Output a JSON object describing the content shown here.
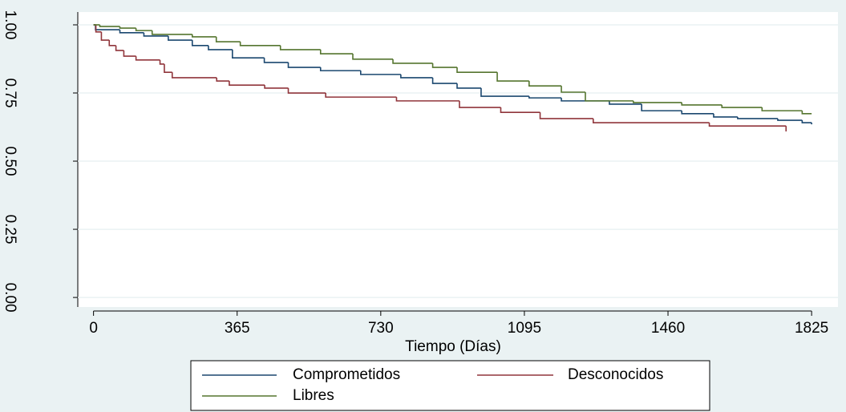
{
  "chart_data": {
    "type": "step",
    "step": "post",
    "x_label": "Tiempo (Días)",
    "xlim": [
      -40,
      1892
    ],
    "ylim": [
      -0.035,
      1.047
    ],
    "xticks": [
      0,
      365,
      730,
      1095,
      1460,
      1825
    ],
    "yticks": [
      {
        "value": 0,
        "label": "0.00"
      },
      {
        "value": 0.25,
        "label": "0.25"
      },
      {
        "value": 0.5,
        "label": "0.50"
      },
      {
        "value": 0.75,
        "label": "0.75"
      },
      {
        "value": 1,
        "label": "1.00"
      }
    ],
    "grid": true,
    "legend": "bottom",
    "series": [
      {
        "name": "Comprometidos",
        "color": "#1a476f",
        "x": [
          0,
          5,
          67,
          128,
          190,
          251,
          292,
          353,
          434,
          495,
          577,
          679,
          781,
          862,
          924,
          985,
          1107,
          1189,
          1311,
          1393,
          1495,
          1576,
          1637,
          1739,
          1801,
          1825
        ],
        "values": [
          1,
          0.982,
          0.971,
          0.959,
          0.944,
          0.924,
          0.909,
          0.879,
          0.862,
          0.844,
          0.832,
          0.818,
          0.806,
          0.785,
          0.768,
          0.738,
          0.732,
          0.721,
          0.709,
          0.685,
          0.674,
          0.662,
          0.656,
          0.65,
          0.641,
          0.635
        ]
      },
      {
        "name": "Desconocidos",
        "color": "#90353b",
        "x": [
          0,
          6,
          20,
          40,
          57,
          77,
          108,
          169,
          180,
          200,
          313,
          345,
          435,
          495,
          590,
          770,
          930,
          1035,
          1135,
          1270,
          1565,
          1760
        ],
        "values": [
          1,
          0.974,
          0.944,
          0.924,
          0.906,
          0.885,
          0.871,
          0.856,
          0.826,
          0.806,
          0.794,
          0.779,
          0.768,
          0.75,
          0.735,
          0.721,
          0.697,
          0.679,
          0.656,
          0.641,
          0.629,
          0.609
        ]
      },
      {
        "name": "Libres",
        "color": "#55752f",
        "x": [
          0,
          16,
          67,
          108,
          149,
          251,
          312,
          373,
          475,
          577,
          659,
          761,
          862,
          924,
          1026,
          1107,
          1189,
          1250,
          1372,
          1495,
          1597,
          1699,
          1801,
          1825
        ],
        "values": [
          1,
          0.994,
          0.988,
          0.979,
          0.965,
          0.956,
          0.938,
          0.924,
          0.909,
          0.894,
          0.874,
          0.859,
          0.844,
          0.826,
          0.794,
          0.776,
          0.753,
          0.721,
          0.715,
          0.706,
          0.697,
          0.685,
          0.674,
          0.674
        ]
      }
    ]
  }
}
